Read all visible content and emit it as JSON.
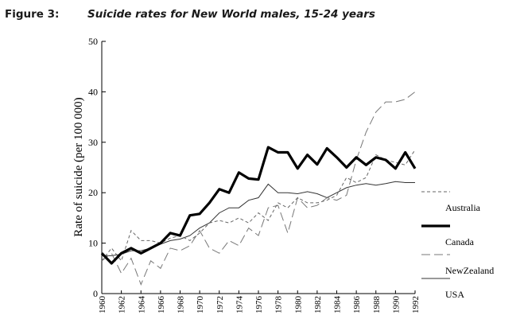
{
  "figure": {
    "label": "Figure 3:",
    "title": "Suicide rates for New World males, 15-24 years"
  },
  "chart_data": {
    "type": "line",
    "title": "Suicide rates for New World males, 15-24 years",
    "xlabel": "",
    "ylabel": "Rate of suicide (per 100 000)",
    "ylim": [
      0,
      50
    ],
    "yticks": [
      0,
      10,
      20,
      30,
      40,
      50
    ],
    "xlim": [
      1960,
      1992
    ],
    "xticks": [
      1960,
      1962,
      1964,
      1966,
      1968,
      1970,
      1972,
      1974,
      1976,
      1978,
      1980,
      1982,
      1984,
      1986,
      1988,
      1990,
      1992
    ],
    "grid": false,
    "legend_position": "right",
    "x": [
      1960,
      1961,
      1962,
      1963,
      1964,
      1965,
      1966,
      1967,
      1968,
      1969,
      1970,
      1971,
      1972,
      1973,
      1974,
      1975,
      1976,
      1977,
      1978,
      1979,
      1980,
      1981,
      1982,
      1983,
      1984,
      1985,
      1986,
      1987,
      1988,
      1989,
      1990,
      1991,
      1992
    ],
    "series": [
      {
        "name": "Australia",
        "style": "dashed",
        "values": [
          6.5,
          9.0,
          6.5,
          12.5,
          10.5,
          10.5,
          10.0,
          11.0,
          11.5,
          10.5,
          12.0,
          14.0,
          14.5,
          14.0,
          15.0,
          14.0,
          16.0,
          14.5,
          18.0,
          17.0,
          19.0,
          18.0,
          18.0,
          18.5,
          19.5,
          23.0,
          22.0,
          23.0,
          27.5,
          26.5,
          26.0,
          25.5,
          28.5
        ]
      },
      {
        "name": "Canada",
        "style": "thick",
        "values": [
          8.0,
          6.0,
          8.0,
          9.0,
          8.0,
          9.0,
          10.0,
          12.0,
          11.5,
          15.5,
          15.8,
          18.0,
          20.7,
          20.0,
          24.0,
          22.8,
          22.6,
          29.0,
          28.0,
          28.0,
          24.8,
          27.5,
          25.6,
          28.8,
          27.0,
          25.0,
          27.0,
          25.5,
          27.0,
          26.5,
          24.8,
          28.0,
          24.8
        ]
      },
      {
        "name": "NewZealand",
        "style": "long-dashed",
        "values": [
          6.5,
          8.0,
          4.0,
          7.0,
          1.8,
          6.5,
          5.0,
          9.0,
          8.5,
          9.5,
          12.5,
          9.0,
          8.0,
          10.5,
          9.5,
          13.0,
          11.5,
          17.0,
          17.5,
          12.0,
          19.0,
          17.0,
          17.5,
          19.0,
          18.5,
          19.5,
          26.5,
          32.0,
          36.0,
          38.0,
          38.0,
          38.5,
          40.0
        ]
      },
      {
        "name": "USA",
        "style": "thin",
        "values": [
          7.5,
          7.5,
          7.8,
          8.5,
          8.5,
          9.0,
          9.8,
          10.5,
          10.8,
          11.5,
          13.0,
          14.0,
          16.0,
          17.0,
          17.0,
          18.5,
          19.0,
          21.7,
          20.0,
          20.0,
          19.8,
          20.2,
          19.8,
          19.0,
          20.0,
          21.0,
          21.5,
          21.8,
          21.5,
          21.8,
          22.2,
          22.0,
          22.0
        ]
      }
    ]
  }
}
